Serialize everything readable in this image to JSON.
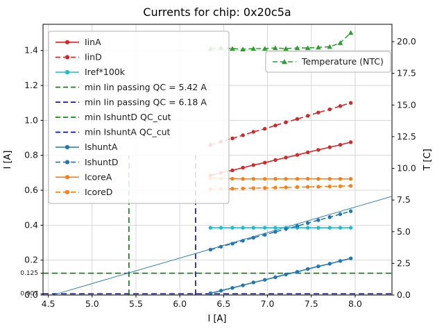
{
  "chart_data": {
    "type": "line",
    "title": "Currents for chip: 0x20c5a",
    "xlabel": "I [A]",
    "ylabel": "I [A]",
    "y2label": "T [C]",
    "xlim": [
      4.44,
      8.42
    ],
    "ylim": [
      0,
      1.55
    ],
    "y2lim": [
      0,
      21.37
    ],
    "grid": true,
    "xticks": [
      {
        "v": 4.5,
        "label": "4.5"
      },
      {
        "v": 5.0,
        "label": "5.0"
      },
      {
        "v": 5.5,
        "label": "5.5"
      },
      {
        "v": 6.0,
        "label": "6.0"
      },
      {
        "v": 6.5,
        "label": "6.5"
      },
      {
        "v": 7.0,
        "label": "7.0"
      },
      {
        "v": 7.5,
        "label": "7.5"
      },
      {
        "v": 8.0,
        "label": "8.0"
      }
    ],
    "yticks": [
      {
        "v": 0.0,
        "label": "0.0",
        "small": false
      },
      {
        "v": 0.007,
        "label": "0.007",
        "small": true
      },
      {
        "v": 0.125,
        "label": "0.125",
        "small": true
      },
      {
        "v": 0.2,
        "label": "0.2",
        "small": false
      },
      {
        "v": 0.4,
        "label": "0.4",
        "small": false
      },
      {
        "v": 0.6,
        "label": "0.6",
        "small": false
      },
      {
        "v": 0.8,
        "label": "0.8",
        "small": false
      },
      {
        "v": 1.0,
        "label": "1.0",
        "small": false
      },
      {
        "v": 1.2,
        "label": "1.2",
        "small": false
      },
      {
        "v": 1.4,
        "label": "1.4",
        "small": false
      }
    ],
    "y2ticks": [
      {
        "v": 0.0,
        "label": "0.0"
      },
      {
        "v": 2.5,
        "label": "2.5"
      },
      {
        "v": 5.0,
        "label": "5.0"
      },
      {
        "v": 7.5,
        "label": "7.5"
      },
      {
        "v": 10.0,
        "label": "10.0"
      },
      {
        "v": 12.5,
        "label": "12.5"
      },
      {
        "v": 15.0,
        "label": "15.0"
      },
      {
        "v": 17.5,
        "label": "17.5"
      },
      {
        "v": 20.0,
        "label": "20.0"
      }
    ],
    "x": [
      6.35,
      6.47,
      6.6,
      6.72,
      6.84,
      6.97,
      7.09,
      7.21,
      7.34,
      7.46,
      7.58,
      7.71,
      7.83,
      7.95
    ],
    "series": [
      {
        "name": "IinA",
        "color": "#d62728",
        "dash": false,
        "marker": "circle",
        "axis": "left",
        "values": [
          0.685,
          0.7,
          0.714,
          0.729,
          0.744,
          0.758,
          0.773,
          0.787,
          0.802,
          0.817,
          0.831,
          0.846,
          0.86,
          0.875
        ]
      },
      {
        "name": "IinD",
        "color": "#d62728",
        "dash": true,
        "marker": "circle",
        "axis": "left",
        "values": [
          0.86,
          0.878,
          0.897,
          0.915,
          0.934,
          0.952,
          0.971,
          0.989,
          1.008,
          1.026,
          1.045,
          1.063,
          1.082,
          1.1
        ]
      },
      {
        "name": "Iref*100k",
        "color": "#17becf",
        "dash": false,
        "marker": "circle",
        "axis": "left",
        "values": [
          0.385,
          0.385,
          0.385,
          0.385,
          0.385,
          0.385,
          0.385,
          0.385,
          0.385,
          0.385,
          0.385,
          0.385,
          0.385,
          0.385
        ]
      },
      {
        "name": "IshuntA",
        "color": "#1f77b4",
        "dash": false,
        "marker": "circle",
        "axis": "left",
        "values": [
          0.01,
          0.025,
          0.041,
          0.056,
          0.072,
          0.087,
          0.102,
          0.118,
          0.133,
          0.149,
          0.164,
          0.179,
          0.195,
          0.21
        ]
      },
      {
        "name": "IshuntD",
        "color": "#1f77b4",
        "dash": true,
        "marker": "circle",
        "axis": "left",
        "values": [
          0.26,
          0.277,
          0.294,
          0.311,
          0.328,
          0.345,
          0.362,
          0.378,
          0.395,
          0.412,
          0.429,
          0.446,
          0.463,
          0.48
        ]
      },
      {
        "name": "IcoreA",
        "color": "#ff7f0e",
        "dash": false,
        "marker": "circle",
        "axis": "left",
        "values": [
          0.67,
          0.667,
          0.666,
          0.665,
          0.665,
          0.665,
          0.665,
          0.665,
          0.665,
          0.666,
          0.665,
          0.665,
          0.665,
          0.665
        ]
      },
      {
        "name": "IcoreD",
        "color": "#ff7f0e",
        "dash": true,
        "marker": "circle",
        "axis": "left",
        "values": [
          0.605,
          0.607,
          0.609,
          0.61,
          0.612,
          0.613,
          0.615,
          0.616,
          0.618,
          0.619,
          0.62,
          0.622,
          0.623,
          0.625
        ]
      },
      {
        "name": "Temperature (NTC)",
        "color": "#2ca02c",
        "dash": true,
        "marker": "triangle",
        "axis": "right",
        "values": [
          19.45,
          19.5,
          19.45,
          19.4,
          19.45,
          19.45,
          19.5,
          19.45,
          19.5,
          19.5,
          19.55,
          19.6,
          19.9,
          20.7
        ]
      }
    ],
    "fit_line": {
      "color": "#1f77b4",
      "x": [
        4.55,
        8.42
      ],
      "y": [
        0.0,
        0.565
      ]
    },
    "vlines": [
      {
        "label": "min Iin passing QC = 5.42 A",
        "x": 5.42,
        "ymin": 0.0,
        "ymax": 0.8,
        "color": "#008000"
      },
      {
        "label": "min Iin passing QC = 6.18 A",
        "x": 6.18,
        "ymin": 0.0,
        "ymax": 0.8,
        "color": "#0000cd"
      }
    ],
    "hlines": [
      {
        "label": "min IshuntD QC_cut",
        "y": 0.125,
        "color": "#008000"
      },
      {
        "label": "min IshuntA QC_cut",
        "y": 0.007,
        "color": "#0000cd"
      }
    ],
    "legend": [
      {
        "label": "IinA",
        "color": "#d62728",
        "dash": false,
        "marker": "circle"
      },
      {
        "label": "IinD",
        "color": "#d62728",
        "dash": true,
        "marker": "circle"
      },
      {
        "label": "Iref*100k",
        "color": "#17becf",
        "dash": false,
        "marker": "circle"
      },
      {
        "label": "min Iin passing QC = 5.42 A",
        "color": "#008000",
        "dash": true,
        "marker": null
      },
      {
        "label": "min Iin passing QC = 6.18 A",
        "color": "#0000cd",
        "dash": true,
        "marker": null
      },
      {
        "label": "min IshuntD QC_cut",
        "color": "#008000",
        "dash": true,
        "marker": null
      },
      {
        "label": "min IshuntA QC_cut",
        "color": "#0000cd",
        "dash": true,
        "marker": null
      },
      {
        "label": "IshuntA",
        "color": "#1f77b4",
        "dash": false,
        "marker": "circle"
      },
      {
        "label": "IshuntD",
        "color": "#1f77b4",
        "dash": true,
        "marker": "circle"
      },
      {
        "label": "IcoreA",
        "color": "#ff7f0e",
        "dash": false,
        "marker": "circle"
      },
      {
        "label": "IcoreD",
        "color": "#ff7f0e",
        "dash": true,
        "marker": "circle"
      }
    ],
    "legend2": [
      {
        "label": "Temperature (NTC)",
        "color": "#2ca02c",
        "dash": true,
        "marker": "triangle"
      }
    ]
  }
}
